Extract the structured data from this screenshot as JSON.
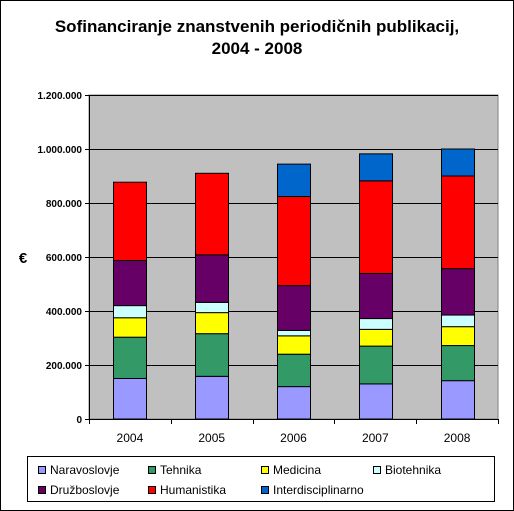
{
  "chart_data": {
    "type": "bar",
    "stacked": true,
    "title": [
      "Sofinanciranje znanstvenih periodičnih publikacij,",
      "2004 - 2008"
    ],
    "ylabel": "€",
    "xlabel": "",
    "categories": [
      "2004",
      "2005",
      "2006",
      "2007",
      "2008"
    ],
    "ylim": [
      0,
      1200000
    ],
    "ytick_labels": [
      "0",
      "200.000",
      "400.000",
      "600.000",
      "800.000",
      "1.000.000",
      "1.200.000"
    ],
    "grid": true,
    "legend_position": "bottom",
    "series": [
      {
        "name": "Naravoslovje",
        "color": "#9999ff",
        "values": [
          150000,
          158000,
          120000,
          130000,
          142000
        ]
      },
      {
        "name": "Tehnika",
        "color": "#339966",
        "values": [
          153000,
          158000,
          120000,
          140000,
          130000
        ]
      },
      {
        "name": "Medicina",
        "color": "#ffff00",
        "values": [
          72000,
          78000,
          68000,
          62000,
          70000
        ]
      },
      {
        "name": "Biotehnika",
        "color": "#ccffff",
        "values": [
          45000,
          38000,
          20000,
          40000,
          43000
        ]
      },
      {
        "name": "Družboslovje",
        "color": "#660066",
        "values": [
          167000,
          176000,
          166000,
          167000,
          172000
        ]
      },
      {
        "name": "Humanistika",
        "color": "#ff0000",
        "values": [
          290000,
          302000,
          330000,
          343000,
          343000
        ]
      },
      {
        "name": "Interdisciplinarno",
        "color": "#0066cc",
        "values": [
          0,
          0,
          120000,
          100000,
          100000
        ]
      }
    ]
  },
  "colors": {
    "plot_background": "#c0c0c0",
    "frame": "#000000"
  }
}
